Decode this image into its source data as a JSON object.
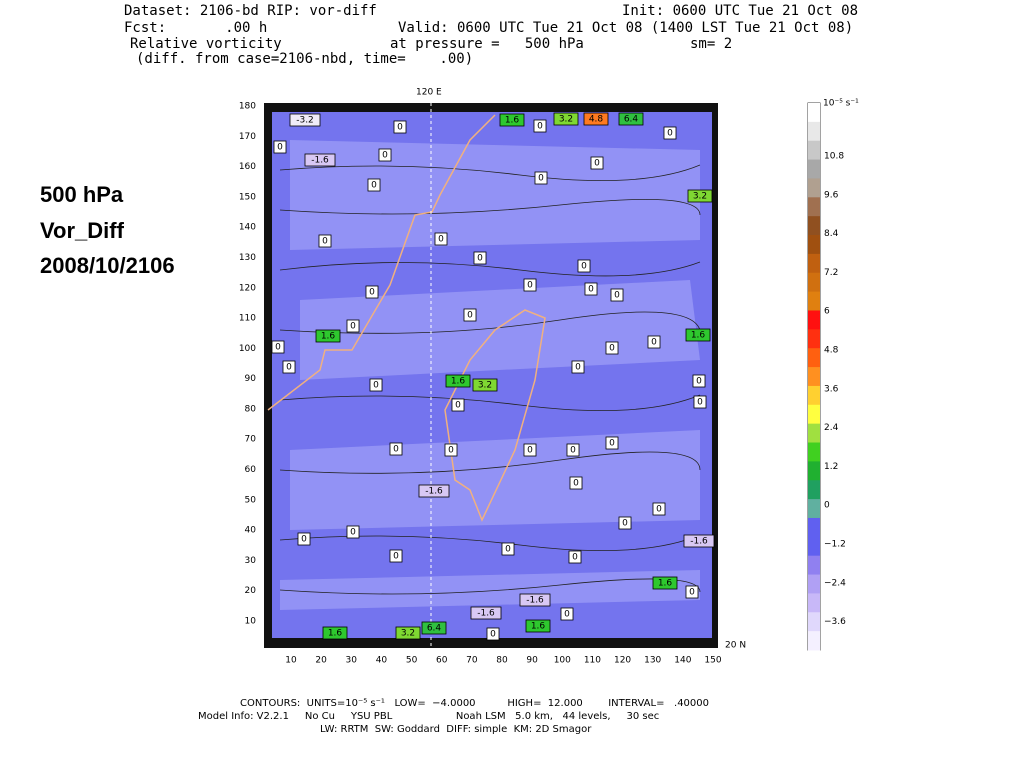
{
  "header": {
    "dataset": "Dataset: 2106-bd   RIP: vor-diff",
    "init": "Init: 0600 UTC Tue 21 Oct 08",
    "fcst": "Fcst:       .00 h",
    "valid": "Valid: 0600 UTC Tue 21 Oct 08 (1400 LST Tue 21 Oct 08)",
    "field": "Relative vorticity",
    "pressure": "at pressure =   500 hPa",
    "sm": "sm= 2",
    "diff": "(diff. from case=2106-nbd, time=    .00)"
  },
  "side_label": [
    "500 hPa",
    "Vor_Diff",
    "2008/10/2106"
  ],
  "map": {
    "top_label": "120 E",
    "right_label": "20 N",
    "xticks": [
      10,
      20,
      30,
      40,
      50,
      60,
      70,
      80,
      90,
      100,
      110,
      120,
      130,
      140,
      150
    ],
    "yticks": [
      10,
      20,
      30,
      40,
      50,
      60,
      70,
      80,
      90,
      100,
      110,
      120,
      130,
      140,
      150,
      160,
      170,
      180
    ],
    "contour_labels": [
      "-3.2",
      "0",
      "1.6",
      "0",
      "3.2",
      "4.8",
      "6.4",
      "0",
      "-1.6",
      "0",
      "0",
      "0",
      "0",
      "0",
      "3.2",
      "0",
      "0",
      "0",
      "0",
      "0",
      "0",
      "0",
      "0",
      "0",
      "0",
      "1.6",
      "1.6",
      "0",
      "0",
      "0",
      "0",
      "0",
      "1.6",
      "3.2",
      "0",
      "0",
      "0",
      "0",
      "0",
      "0",
      "0",
      "0",
      "0",
      "-1.6",
      "0",
      "0",
      "0",
      "0",
      "0",
      "0",
      "0",
      "0",
      "-1.6",
      "1.6",
      "-1.6",
      "0",
      "-1.6",
      "0",
      "3.2",
      "6.4",
      "1.6",
      "0",
      "1.6"
    ]
  },
  "colorbar": {
    "unit": "10⁻⁵ s⁻¹",
    "labels": [
      "10.8",
      "9.6",
      "8.4",
      "7.2",
      "6",
      "4.8",
      "3.6",
      "2.4",
      "1.2",
      "0",
      "−1.2",
      "−2.4",
      "−3.6"
    ]
  },
  "footer": [
    "CONTOURS:  UNITS=10⁻⁵ s⁻¹   LOW=  −4.0000          HIGH=  12.000        INTERVAL=   .40000",
    "Model Info: V2.2.1     No Cu     YSU PBL                    Noah LSM   5.0 km,   44 levels,     30 sec",
    "LW: RRTM  SW: Goddard  DIFF: simple  KM: 2D Smagor"
  ]
}
